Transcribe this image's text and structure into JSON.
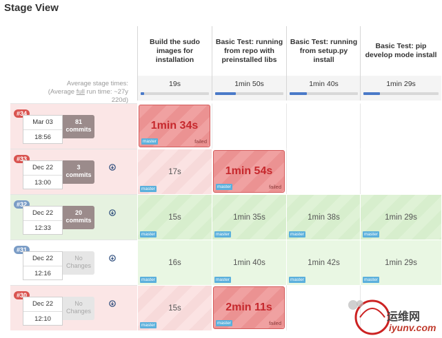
{
  "title": "Stage View",
  "stages": [
    {
      "name": "Build the sudo images for installation",
      "avg": "19s",
      "avg_fraction": 0.05
    },
    {
      "name": "Basic Test: running from repo with preinstalled libs",
      "avg": "1min 50s",
      "avg_fraction": 0.3
    },
    {
      "name": "Basic Test: running from setup.py install",
      "avg": "1min 40s",
      "avg_fraction": 0.25
    },
    {
      "name": "Basic Test: pip develop mode install",
      "avg": "1min 29s",
      "avg_fraction": 0.22
    }
  ],
  "avg_label": {
    "line1": "Average stage times:",
    "line2_pre": "(Average ",
    "line2_link": "full",
    "line2_post": " run time: ~27y",
    "line3": "220d)"
  },
  "builds": [
    {
      "id": "#34",
      "date": "Mar 03",
      "time": "18:56",
      "commits_n": "81",
      "commits_word": "commits",
      "status": "failed",
      "cells": [
        {
          "v": "1min 34s",
          "s": "bigfail",
          "fail": "failed"
        },
        {
          "v": "",
          "s": "white"
        },
        {
          "v": "",
          "s": "white"
        },
        {
          "v": "",
          "s": "white"
        }
      ]
    },
    {
      "id": "#33",
      "date": "Dec 22",
      "time": "13:00",
      "commits_n": "3",
      "commits_word": "commits",
      "status": "failed",
      "cells": [
        {
          "v": "17s",
          "s": "pinkgrad"
        },
        {
          "v": "1min 54s",
          "s": "bigfail",
          "fail": "failed"
        },
        {
          "v": "",
          "s": "white"
        },
        {
          "v": "",
          "s": "white"
        }
      ]
    },
    {
      "id": "#32",
      "date": "Dec 22",
      "time": "12:33",
      "commits_n": "20",
      "commits_word": "commits",
      "status": "success",
      "cells": [
        {
          "v": "15s",
          "s": "greenstripe"
        },
        {
          "v": "1min 35s",
          "s": "greenstripe"
        },
        {
          "v": "1min 38s",
          "s": "greenstripe"
        },
        {
          "v": "1min 29s",
          "s": "greenstripe"
        }
      ]
    },
    {
      "id": "#31",
      "date": "Dec 22",
      "time": "12:16",
      "commits_n": "No",
      "commits_word": "Changes",
      "status": "success",
      "cells": [
        {
          "v": "16s",
          "s": "green"
        },
        {
          "v": "1min 40s",
          "s": "green"
        },
        {
          "v": "1min 42s",
          "s": "green"
        },
        {
          "v": "1min 29s",
          "s": "green"
        }
      ]
    },
    {
      "id": "#30",
      "date": "Dec 22",
      "time": "12:10",
      "commits_n": "No",
      "commits_word": "Changes",
      "status": "failed",
      "cells": [
        {
          "v": "15s",
          "s": "pinkgrad"
        },
        {
          "v": "2min 11s",
          "s": "bigfail",
          "fail": "failed"
        },
        {
          "v": "",
          "s": "white"
        },
        {
          "v": "",
          "s": "white"
        }
      ]
    }
  ],
  "branch_tag": "master",
  "watermark": {
    "text": "运维网",
    "url": "iyunv.com"
  },
  "colors": {
    "failed_badge": "#d9534f",
    "success_badge": "#7a9cc6",
    "commits_bg": "#9b8b8b",
    "progress": "#4a7ac8"
  }
}
